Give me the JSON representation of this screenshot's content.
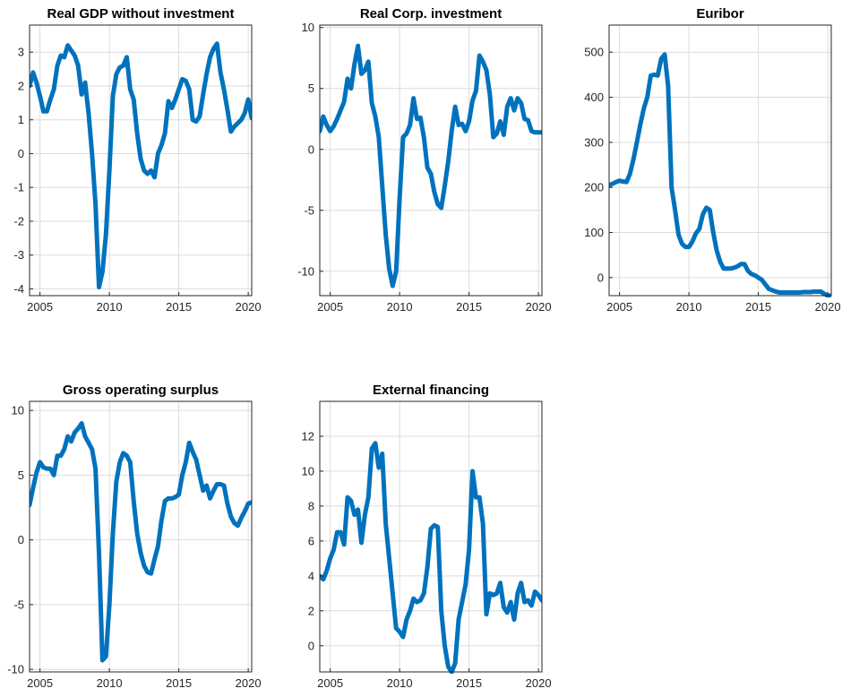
{
  "colors": {
    "series": "#0072BD",
    "grid": "#dcdcdc",
    "axis": "#262626"
  },
  "chart_data": [
    {
      "type": "line",
      "title": "Real GDP without investment",
      "xlabel": "",
      "ylabel": "",
      "xlim": [
        2004.25,
        2020.25
      ],
      "ylim": [
        -4.2,
        3.8
      ],
      "xticks": [
        2005,
        2010,
        2015,
        2020
      ],
      "yticks": [
        -4,
        -3,
        -2,
        -1,
        0,
        1,
        2,
        3
      ],
      "grid": true,
      "series": [
        {
          "x": [
            2004.25,
            2004.5,
            2004.75,
            2005,
            2005.25,
            2005.5,
            2005.75,
            2006,
            2006.25,
            2006.5,
            2006.75,
            2007,
            2007.25,
            2007.5,
            2007.75,
            2008,
            2008.25,
            2008.5,
            2008.75,
            2009,
            2009.25,
            2009.5,
            2009.75,
            2010,
            2010.25,
            2010.5,
            2010.75,
            2011,
            2011.25,
            2011.5,
            2011.75,
            2012,
            2012.25,
            2012.5,
            2012.75,
            2013,
            2013.25,
            2013.5,
            2013.75,
            2014,
            2014.25,
            2014.5,
            2014.75,
            2015,
            2015.25,
            2015.5,
            2015.75,
            2016,
            2016.25,
            2016.5,
            2016.75,
            2017,
            2017.25,
            2017.5,
            2017.75,
            2018,
            2018.25,
            2018.5,
            2018.75,
            2019,
            2019.25,
            2019.5,
            2019.75,
            2020,
            2020.25
          ],
          "y": [
            2.0,
            2.4,
            2.1,
            1.7,
            1.25,
            1.25,
            1.6,
            1.9,
            2.6,
            2.9,
            2.85,
            3.2,
            3.05,
            2.9,
            2.6,
            1.75,
            2.1,
            1.2,
            0.0,
            -1.5,
            -3.95,
            -3.5,
            -2.4,
            -0.5,
            1.7,
            2.35,
            2.55,
            2.6,
            2.85,
            1.9,
            1.6,
            0.6,
            -0.15,
            -0.5,
            -0.6,
            -0.5,
            -0.7,
            0.0,
            0.25,
            0.6,
            1.55,
            1.35,
            1.6,
            1.9,
            2.2,
            2.15,
            1.9,
            1.0,
            0.95,
            1.1,
            1.75,
            2.35,
            2.85,
            3.1,
            3.25,
            2.4,
            1.9,
            1.3,
            0.65,
            0.8,
            0.9,
            1.0,
            1.2,
            1.6,
            1.05
          ]
        }
      ]
    },
    {
      "type": "line",
      "title": "Real Corp. investment",
      "xlabel": "",
      "ylabel": "",
      "xlim": [
        2004.25,
        2020.25
      ],
      "ylim": [
        -12.0,
        10.2
      ],
      "xticks": [
        2005,
        2010,
        2015,
        2020
      ],
      "yticks": [
        -10,
        -5,
        0,
        5,
        10
      ],
      "grid": true,
      "series": [
        {
          "x": [
            2004.25,
            2004.5,
            2004.75,
            2005,
            2005.25,
            2005.5,
            2005.75,
            2006,
            2006.25,
            2006.5,
            2006.75,
            2007,
            2007.25,
            2007.5,
            2007.75,
            2008,
            2008.25,
            2008.5,
            2008.75,
            2009,
            2009.25,
            2009.5,
            2009.75,
            2010,
            2010.25,
            2010.5,
            2010.75,
            2011,
            2011.25,
            2011.5,
            2011.75,
            2012,
            2012.25,
            2012.5,
            2012.75,
            2013,
            2013.25,
            2013.5,
            2013.75,
            2014,
            2014.25,
            2014.5,
            2014.75,
            2015,
            2015.25,
            2015.5,
            2015.75,
            2016,
            2016.25,
            2016.5,
            2016.75,
            2017,
            2017.25,
            2017.5,
            2017.75,
            2018,
            2018.25,
            2018.5,
            2018.75,
            2019,
            2019.25,
            2019.5,
            2019.75,
            2020,
            2020.25
          ],
          "y": [
            1.5,
            2.7,
            2.0,
            1.5,
            1.9,
            2.5,
            3.2,
            3.9,
            5.8,
            5.0,
            7.0,
            8.5,
            6.2,
            6.5,
            7.2,
            3.8,
            2.7,
            1.0,
            -3.0,
            -7.0,
            -9.8,
            -11.2,
            -10.0,
            -4.0,
            1.0,
            1.3,
            2.0,
            4.2,
            2.5,
            2.6,
            1.0,
            -1.5,
            -2.0,
            -3.5,
            -4.5,
            -4.8,
            -3.0,
            -1.0,
            1.5,
            3.5,
            2.0,
            2.1,
            1.5,
            2.3,
            4.0,
            4.8,
            7.7,
            7.2,
            6.5,
            4.5,
            1.0,
            1.3,
            2.3,
            1.2,
            3.5,
            4.2,
            3.2,
            4.2,
            3.8,
            2.5,
            2.4,
            1.5,
            1.4,
            1.4,
            1.4
          ]
        }
      ]
    },
    {
      "type": "line",
      "title": "Euribor",
      "xlabel": "",
      "ylabel": "",
      "xlim": [
        2004.25,
        2020.25
      ],
      "ylim": [
        -40,
        560
      ],
      "xticks": [
        2005,
        2010,
        2015,
        2020
      ],
      "yticks": [
        0,
        100,
        200,
        300,
        400,
        500
      ],
      "grid": true,
      "series": [
        {
          "x": [
            2004.25,
            2004.5,
            2004.75,
            2005,
            2005.25,
            2005.5,
            2005.75,
            2006,
            2006.25,
            2006.5,
            2006.75,
            2007,
            2007.25,
            2007.5,
            2007.75,
            2008,
            2008.25,
            2008.5,
            2008.75,
            2009,
            2009.25,
            2009.5,
            2009.75,
            2010,
            2010.25,
            2010.5,
            2010.75,
            2011,
            2011.25,
            2011.5,
            2011.75,
            2012,
            2012.25,
            2012.5,
            2012.75,
            2013,
            2013.25,
            2013.5,
            2013.75,
            2014,
            2014.25,
            2014.5,
            2014.75,
            2015,
            2015.25,
            2015.5,
            2015.75,
            2016,
            2016.25,
            2016.5,
            2016.75,
            2017,
            2017.25,
            2017.5,
            2017.75,
            2018,
            2018.25,
            2018.5,
            2018.75,
            2019,
            2019.25,
            2019.5,
            2019.75,
            2020,
            2020.25
          ],
          "y": [
            205,
            208,
            212,
            215,
            213,
            212,
            230,
            262,
            300,
            340,
            375,
            400,
            448,
            450,
            448,
            485,
            495,
            425,
            200,
            150,
            95,
            75,
            68,
            68,
            80,
            98,
            108,
            140,
            155,
            150,
            100,
            60,
            35,
            20,
            20,
            20,
            22,
            25,
            30,
            30,
            15,
            8,
            5,
            0,
            -5,
            -15,
            -25,
            -28,
            -31,
            -33,
            -33,
            -33,
            -33,
            -33,
            -33,
            -33,
            -32,
            -32,
            -32,
            -31,
            -31,
            -31,
            -36,
            -40,
            -40
          ]
        }
      ]
    },
    {
      "type": "line",
      "title": "Gross operating surplus",
      "xlabel": "",
      "ylabel": "",
      "xlim": [
        2004.25,
        2020.25
      ],
      "ylim": [
        -10.2,
        10.7
      ],
      "xticks": [
        2005,
        2010,
        2015,
        2020
      ],
      "yticks": [
        -10,
        -5,
        0,
        5,
        10
      ],
      "grid": true,
      "series": [
        {
          "x": [
            2004.25,
            2004.5,
            2004.75,
            2005,
            2005.25,
            2005.5,
            2005.75,
            2006,
            2006.25,
            2006.5,
            2006.75,
            2007,
            2007.25,
            2007.5,
            2007.75,
            2008,
            2008.25,
            2008.5,
            2008.75,
            2009,
            2009.25,
            2009.5,
            2009.75,
            2010,
            2010.25,
            2010.5,
            2010.75,
            2011,
            2011.25,
            2011.5,
            2011.75,
            2012,
            2012.25,
            2012.5,
            2012.75,
            2013,
            2013.25,
            2013.5,
            2013.75,
            2014,
            2014.25,
            2014.5,
            2014.75,
            2015,
            2015.25,
            2015.5,
            2015.75,
            2016,
            2016.25,
            2016.5,
            2016.75,
            2017,
            2017.25,
            2017.5,
            2017.75,
            2018,
            2018.25,
            2018.5,
            2018.75,
            2019,
            2019.25,
            2019.5,
            2019.75,
            2020,
            2020.25
          ],
          "y": [
            2.7,
            4.0,
            5.2,
            6.0,
            5.6,
            5.5,
            5.5,
            5.0,
            6.5,
            6.5,
            7.0,
            8.0,
            7.6,
            8.3,
            8.6,
            9.0,
            8.0,
            7.5,
            7.0,
            5.5,
            -1.0,
            -9.3,
            -9.0,
            -5.0,
            0.5,
            4.5,
            6.0,
            6.7,
            6.5,
            6.0,
            3.0,
            0.5,
            -1.0,
            -2.0,
            -2.5,
            -2.6,
            -1.5,
            -0.5,
            1.5,
            3.0,
            3.2,
            3.2,
            3.3,
            3.5,
            5.0,
            6.0,
            7.5,
            6.8,
            6.2,
            5.0,
            3.8,
            4.2,
            3.2,
            3.8,
            4.3,
            4.3,
            4.2,
            2.8,
            1.8,
            1.3,
            1.1,
            1.7,
            2.2,
            2.8,
            2.9
          ]
        }
      ]
    },
    {
      "type": "line",
      "title": "External financing",
      "xlabel": "",
      "ylabel": "",
      "xlim": [
        2004.25,
        2020.25
      ],
      "ylim": [
        -1.5,
        14.0
      ],
      "xticks": [
        2005,
        2010,
        2015,
        2020
      ],
      "yticks": [
        0,
        2,
        4,
        6,
        8,
        10,
        12
      ],
      "grid": true,
      "series": [
        {
          "x": [
            2004.25,
            2004.5,
            2004.75,
            2005,
            2005.25,
            2005.5,
            2005.75,
            2006,
            2006.25,
            2006.5,
            2006.75,
            2007,
            2007.25,
            2007.5,
            2007.75,
            2008,
            2008.25,
            2008.5,
            2008.75,
            2009,
            2009.25,
            2009.5,
            2009.75,
            2010,
            2010.25,
            2010.5,
            2010.75,
            2011,
            2011.25,
            2011.5,
            2011.75,
            2012,
            2012.25,
            2012.5,
            2012.75,
            2013,
            2013.25,
            2013.5,
            2013.75,
            2014,
            2014.25,
            2014.5,
            2014.75,
            2015,
            2015.25,
            2015.5,
            2015.75,
            2016,
            2016.25,
            2016.5,
            2016.75,
            2017,
            2017.25,
            2017.5,
            2017.75,
            2018,
            2018.25,
            2018.5,
            2018.75,
            2019,
            2019.25,
            2019.5,
            2019.75,
            2020,
            2020.25
          ],
          "y": [
            4.0,
            3.8,
            4.3,
            5.0,
            5.5,
            6.5,
            6.5,
            5.8,
            8.5,
            8.3,
            7.5,
            7.8,
            5.9,
            7.5,
            8.5,
            11.3,
            11.6,
            10.2,
            11.0,
            7.0,
            5.0,
            3.0,
            1.0,
            0.8,
            0.5,
            1.5,
            2.0,
            2.7,
            2.5,
            2.6,
            3.0,
            4.5,
            6.7,
            6.9,
            6.8,
            2.0,
            0.0,
            -1.2,
            -1.5,
            -1.0,
            1.5,
            2.5,
            3.5,
            5.5,
            10.0,
            8.5,
            8.5,
            7.0,
            1.8,
            3.0,
            2.9,
            3.0,
            3.6,
            2.2,
            1.9,
            2.5,
            1.5,
            3.0,
            3.6,
            2.5,
            2.6,
            2.3,
            3.1,
            2.9,
            2.6
          ]
        }
      ]
    }
  ]
}
